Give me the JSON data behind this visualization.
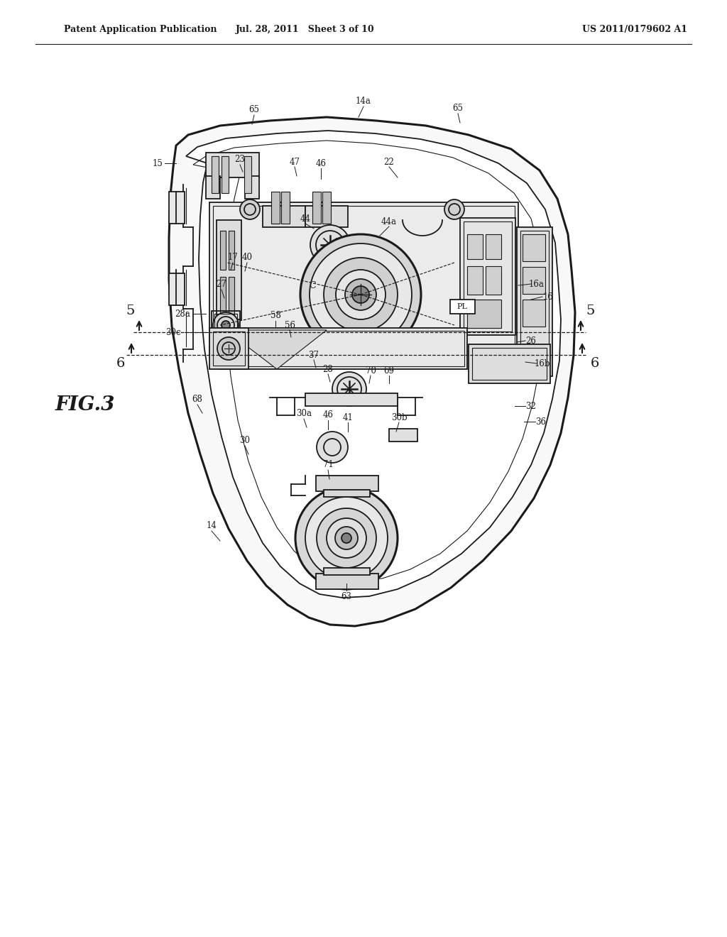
{
  "bg_color": "#ffffff",
  "header_left": "Patent Application Publication",
  "header_mid": "Jul. 28, 2011   Sheet 3 of 10",
  "header_right": "US 2011/0179602 A1",
  "fig_label": "FIG.3",
  "line_color": "#1a1a1a",
  "lw": 1.3,
  "tlw": 0.8,
  "thk": 2.2
}
